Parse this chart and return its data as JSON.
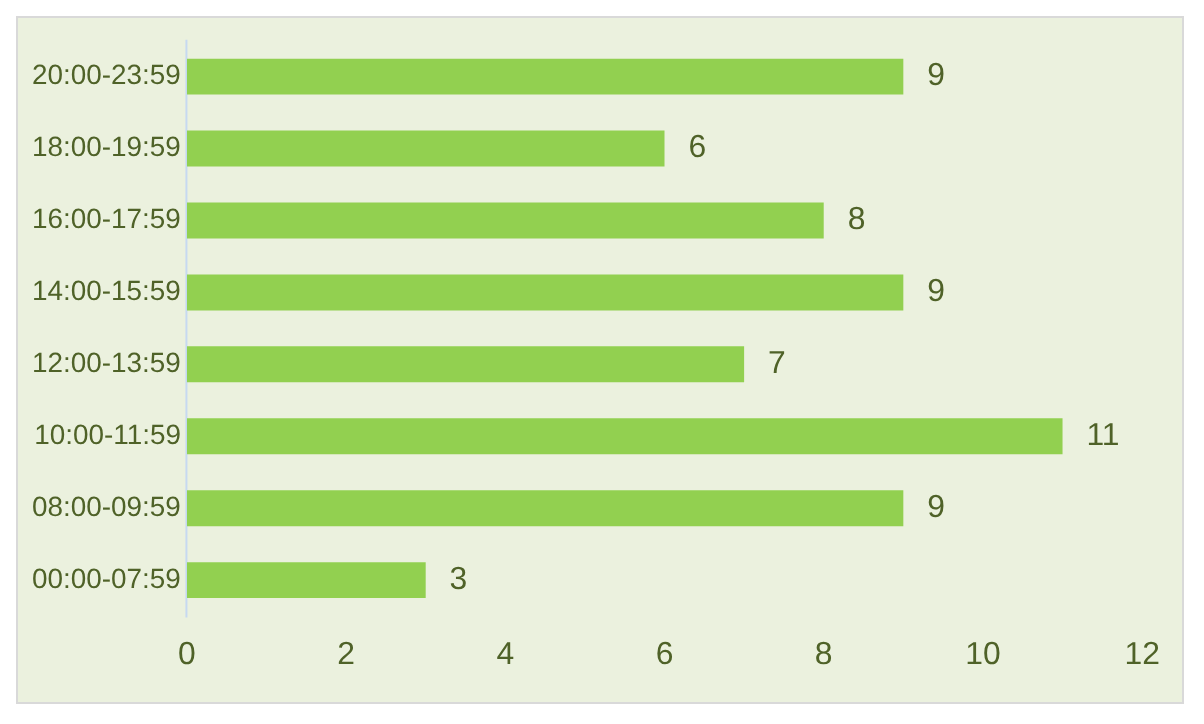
{
  "chart_data": {
    "type": "bar",
    "orientation": "horizontal",
    "categories": [
      "20:00-23:59",
      "18:00-19:59",
      "16:00-17:59",
      "14:00-15:59",
      "12:00-13:59",
      "10:00-11:59",
      "08:00-09:59",
      "00:00-07:59"
    ],
    "values": [
      9,
      6,
      8,
      9,
      7,
      11,
      9,
      3
    ],
    "color": "#92d050",
    "xlim": [
      0,
      12
    ],
    "xticks": [
      0,
      2,
      4,
      6,
      8,
      10,
      12
    ],
    "grid": false,
    "legend": false,
    "data_labels": true
  }
}
